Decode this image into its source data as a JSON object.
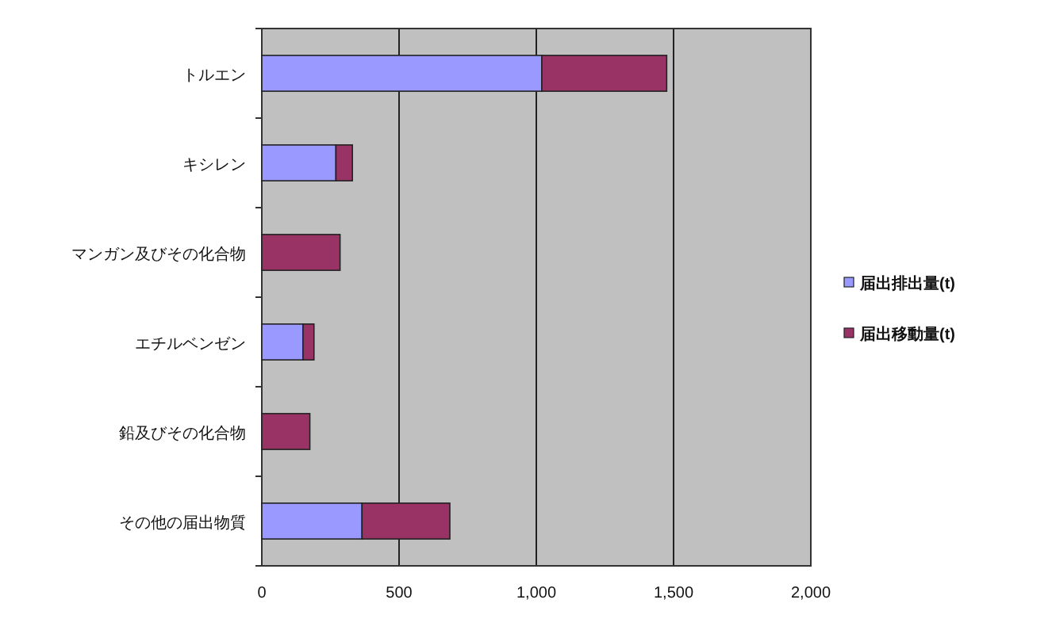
{
  "chart_data": {
    "type": "bar",
    "orientation": "horizontal",
    "stacked": true,
    "categories": [
      "トルエン",
      "キシレン",
      "マンガン及びその化合物",
      "エチルベンゼン",
      "鉛及びその化合物",
      "その他の届出物質"
    ],
    "series": [
      {
        "name": "届出排出量(t)",
        "color": "#9999ff",
        "values": [
          1020,
          270,
          0,
          150,
          0,
          365
        ]
      },
      {
        "name": "届出移動量(t)",
        "color": "#993366",
        "values": [
          455,
          60,
          285,
          40,
          175,
          320
        ]
      }
    ],
    "xlim": [
      0,
      2000
    ],
    "xticks": [
      0,
      500,
      {
        "value": 1000,
        "label": "1,000"
      },
      {
        "value": 1500,
        "label": "1,500"
      },
      {
        "value": 2000,
        "label": "2,000"
      }
    ],
    "grid": "x",
    "legend": "right"
  }
}
